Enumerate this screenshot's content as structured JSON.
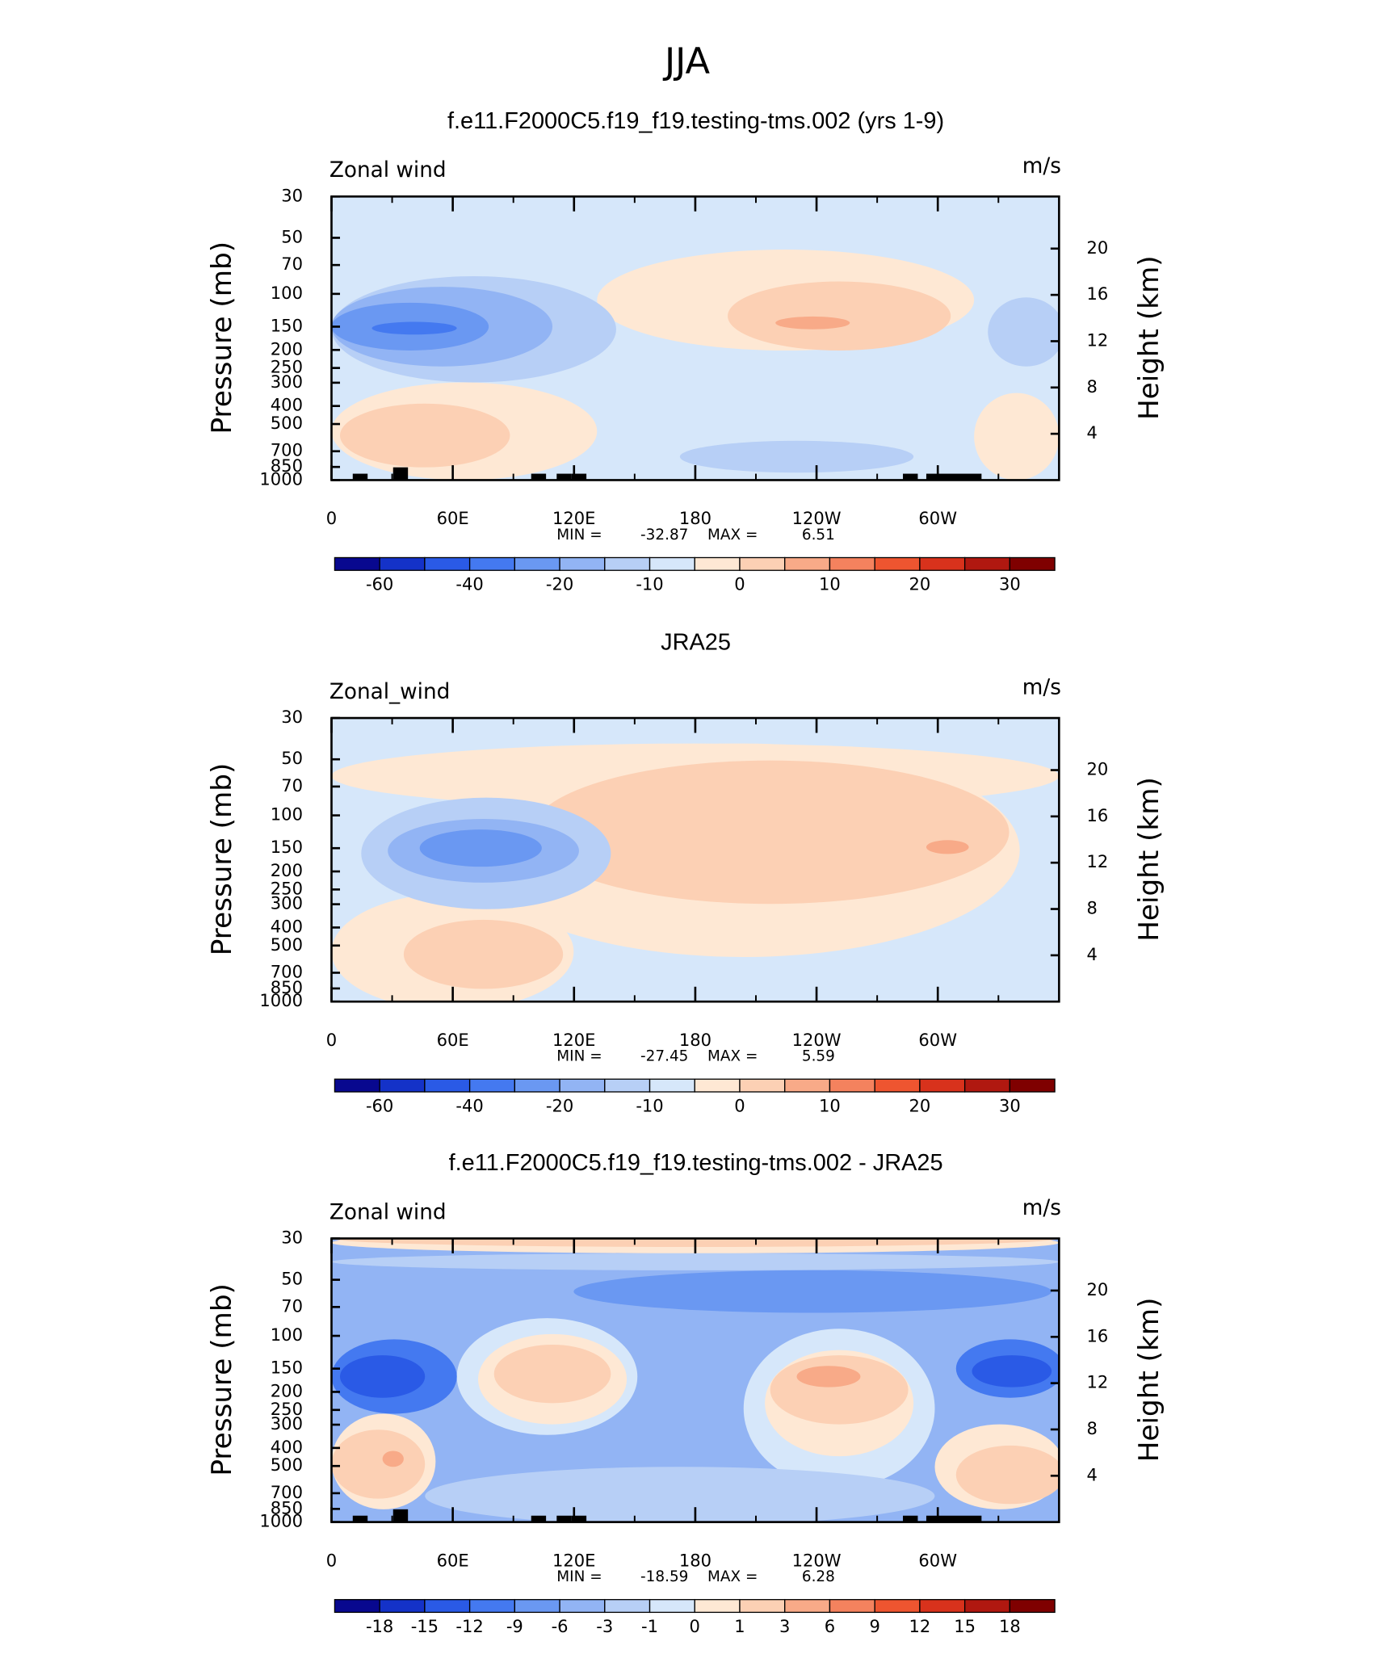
{
  "title": "JJA",
  "chart_data": [
    {
      "type": "contour",
      "title": "f.e11.F2000C5.f19_f19.testing-tms.002 (yrs 1-9)",
      "label": "Zonal wind",
      "units": "m/s",
      "ylabel": "Pressure (mb)",
      "y2label": "Height (km)",
      "xlim": [
        0,
        360
      ],
      "xticks": [
        0,
        {
          "value": 60,
          "label": "60E"
        },
        {
          "value": 120,
          "label": "120E"
        },
        180,
        {
          "value": 240,
          "label": "120W"
        },
        {
          "value": 300,
          "label": "60W"
        }
      ],
      "ylim": [
        1000,
        30
      ],
      "log_scale": true,
      "yticks": [
        30,
        50,
        70,
        100,
        150,
        200,
        250,
        300,
        400,
        500,
        700,
        850,
        1000
      ],
      "y2lim": [
        0,
        24.5
      ],
      "y2ticks": [
        4,
        8,
        12,
        16,
        20
      ],
      "min_label": "MIN =",
      "min": -32.87,
      "max_label": "MAX =",
      "max": 6.51,
      "colorbar": {
        "colors": [
          "#08088f",
          "#1432c8",
          "#2a5ae6",
          "#4479f0",
          "#6a98f2",
          "#92b4f4",
          "#b7cff6",
          "#d6e7fa",
          "#fee8d4",
          "#fcd0b4",
          "#f8aa88",
          "#f4825e",
          "#ee5530",
          "#d8321c",
          "#b01810",
          "#7f0000"
        ],
        "ticks": [
          -60,
          -40,
          -20,
          -10,
          0,
          10,
          20,
          30
        ]
      }
    },
    {
      "type": "contour",
      "title": "JRA25",
      "label": "Zonal_wind",
      "units": "m/s",
      "ylabel": "Pressure (mb)",
      "y2label": "Height (km)",
      "xlim": [
        0,
        360
      ],
      "xticks": [
        0,
        {
          "value": 60,
          "label": "60E"
        },
        {
          "value": 120,
          "label": "120E"
        },
        180,
        {
          "value": 240,
          "label": "120W"
        },
        {
          "value": 300,
          "label": "60W"
        }
      ],
      "ylim": [
        1000,
        30
      ],
      "log_scale": true,
      "yticks": [
        30,
        50,
        70,
        100,
        150,
        200,
        250,
        300,
        400,
        500,
        700,
        850,
        1000
      ],
      "y2lim": [
        0,
        24.5
      ],
      "y2ticks": [
        4,
        8,
        12,
        16,
        20
      ],
      "min_label": "MIN =",
      "min": -27.45,
      "max_label": "MAX =",
      "max": 5.59,
      "colorbar": {
        "colors": [
          "#08088f",
          "#1432c8",
          "#2a5ae6",
          "#4479f0",
          "#6a98f2",
          "#92b4f4",
          "#b7cff6",
          "#d6e7fa",
          "#fee8d4",
          "#fcd0b4",
          "#f8aa88",
          "#f4825e",
          "#ee5530",
          "#d8321c",
          "#b01810",
          "#7f0000"
        ],
        "ticks": [
          -60,
          -40,
          -20,
          -10,
          0,
          10,
          20,
          30
        ]
      }
    },
    {
      "type": "contour",
      "title": "f.e11.F2000C5.f19_f19.testing-tms.002 - JRA25",
      "label": "Zonal wind",
      "units": "m/s",
      "ylabel": "Pressure (mb)",
      "y2label": "Height (km)",
      "xlim": [
        0,
        360
      ],
      "xticks": [
        0,
        {
          "value": 60,
          "label": "60E"
        },
        {
          "value": 120,
          "label": "120E"
        },
        180,
        {
          "value": 240,
          "label": "120W"
        },
        {
          "value": 300,
          "label": "60W"
        }
      ],
      "ylim": [
        1000,
        30
      ],
      "log_scale": true,
      "yticks": [
        30,
        50,
        70,
        100,
        150,
        200,
        250,
        300,
        400,
        500,
        700,
        850,
        1000
      ],
      "y2lim": [
        0,
        24.5
      ],
      "y2ticks": [
        4,
        8,
        12,
        16,
        20
      ],
      "min_label": "MIN =",
      "min": -18.59,
      "max_label": "MAX =",
      "max": 6.28,
      "colorbar": {
        "colors": [
          "#08088f",
          "#1432c8",
          "#2a5ae6",
          "#4479f0",
          "#6a98f2",
          "#92b4f4",
          "#b7cff6",
          "#d6e7fa",
          "#fee8d4",
          "#fcd0b4",
          "#f8aa88",
          "#f4825e",
          "#ee5530",
          "#d8321c",
          "#b01810",
          "#7f0000"
        ],
        "ticks": [
          -18,
          -15,
          -12,
          -9,
          -6,
          -3,
          -1,
          0,
          1,
          3,
          6,
          9,
          12,
          15,
          18
        ]
      }
    }
  ]
}
